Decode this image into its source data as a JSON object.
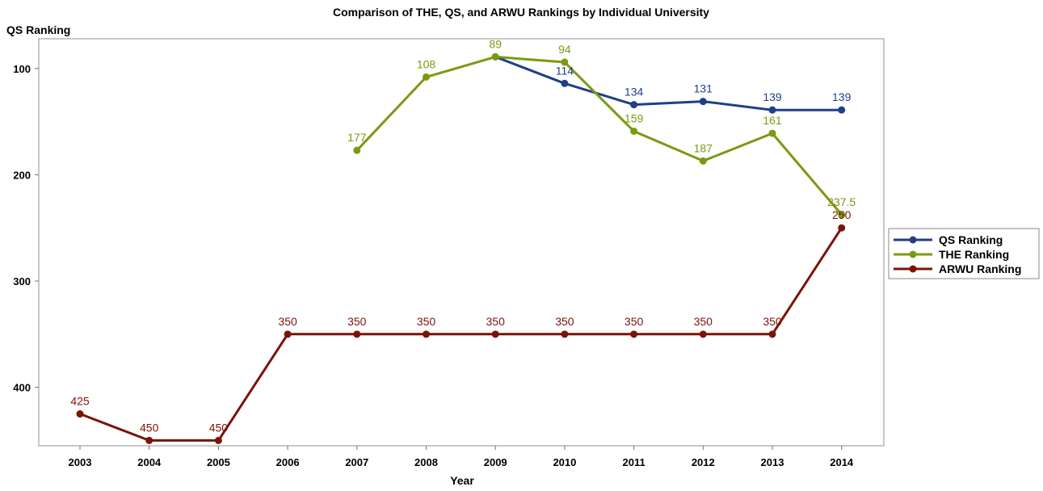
{
  "chart_data": {
    "type": "line",
    "title": "Comparison of THE, QS, and ARWU Rankings by Individual University",
    "xlabel": "Year",
    "ylabel": "QS Ranking",
    "y_reversed": true,
    "ylim": [
      455,
      72
    ],
    "yticks": [
      "100",
      "200",
      "300",
      "400"
    ],
    "categories": [
      "2003",
      "2004",
      "2005",
      "2006",
      "2007",
      "2008",
      "2009",
      "2010",
      "2011",
      "2012",
      "2013",
      "2014"
    ],
    "grid": false,
    "legend_position": "right",
    "series": [
      {
        "name": "QS Ranking",
        "color": "#1f3f86",
        "values": [
          null,
          null,
          null,
          null,
          null,
          null,
          89,
          114,
          134,
          131,
          139,
          139
        ],
        "labels": [
          null,
          null,
          null,
          null,
          null,
          null,
          null,
          "114",
          "134",
          "131",
          "139",
          "139"
        ]
      },
      {
        "name": "THE Ranking",
        "color": "#7a9a12",
        "values": [
          null,
          null,
          null,
          null,
          177,
          108,
          89,
          94,
          159,
          187,
          161,
          237.5
        ],
        "labels": [
          null,
          null,
          null,
          null,
          "177",
          "108",
          "89",
          "94",
          "159",
          "187",
          "161",
          "237.5"
        ]
      },
      {
        "name": "ARWU Ranking",
        "color": "#7a1408",
        "values": [
          425,
          450,
          450,
          350,
          350,
          350,
          350,
          350,
          350,
          350,
          350,
          250
        ],
        "labels": [
          "425",
          "450",
          "450",
          "350",
          "350",
          "350",
          "350",
          "350",
          "350",
          "350",
          "350",
          "250"
        ]
      }
    ]
  }
}
